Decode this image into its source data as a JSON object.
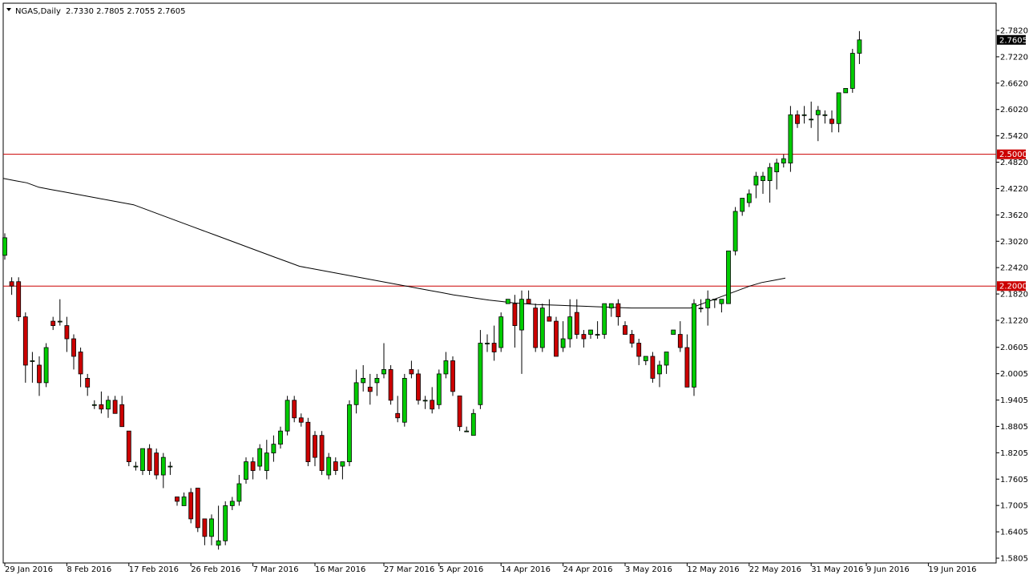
{
  "header": {
    "symbol_timeframe": "NGAS,Daily",
    "ohlc": "2.7330 2.7805 2.7055 2.7605",
    "dropdown_icon": "triangle-down-icon"
  },
  "colors": {
    "background": "#ffffff",
    "bull": "#00cc00",
    "bear": "#cc0000",
    "wick": "#000000",
    "level_line": "#cc0000",
    "moving_average": "#000000",
    "current_price_bg": "#000000",
    "current_price_fg": "#ffffff",
    "level_label_bg": "#cc0000",
    "level_label_fg": "#ffffff"
  },
  "chart_data": {
    "type": "candlestick",
    "title": "NGAS,Daily",
    "ylim": [
      1.5845,
      2.81
    ],
    "y_ticks": [
      "2.7820",
      "2.7220",
      "2.6620",
      "2.6020",
      "2.5420",
      "2.4820",
      "2.4220",
      "2.3620",
      "2.3020",
      "2.2420",
      "2.1820",
      "2.1220",
      "2.0605",
      "2.0005",
      "1.9405",
      "1.8805",
      "1.8205",
      "1.7605",
      "1.7005",
      "1.6405",
      "1.5805"
    ],
    "x_labels": [
      "29 Jan 2016",
      "8 Feb 2016",
      "17 Feb 2016",
      "26 Feb 2016",
      "7 Mar 2016",
      "16 Mar 2016",
      "27 Mar 2016",
      "5 Apr 2016",
      "14 Apr 2016",
      "24 Apr 2016",
      "3 May 2016",
      "12 May 2016",
      "22 May 2016",
      "31 May 2016",
      "9 Jun 2016",
      "19 Jun 2016"
    ],
    "x_label_bar_index": [
      0,
      9,
      18,
      27,
      36,
      45,
      55,
      63,
      72,
      81,
      90,
      99,
      108,
      117,
      125,
      134
    ],
    "horizontal_levels": [
      {
        "value": 2.5,
        "label": "2.5000"
      },
      {
        "value": 2.2,
        "label": "2.2000"
      }
    ],
    "current_price": {
      "value": 2.7605,
      "label": "2.7605"
    },
    "series": [
      {
        "kind": "ohlc",
        "columns": [
          "open",
          "high",
          "low",
          "close"
        ],
        "bars": [
          [
            2.27,
            2.32,
            2.26,
            2.31
          ],
          [
            2.21,
            2.22,
            2.18,
            2.2
          ],
          [
            2.21,
            2.22,
            2.12,
            2.13
          ],
          [
            2.13,
            2.14,
            1.98,
            2.02
          ],
          [
            2.03,
            2.05,
            1.98,
            2.03
          ],
          [
            2.02,
            2.04,
            1.95,
            1.98
          ],
          [
            1.98,
            2.07,
            1.97,
            2.06
          ],
          [
            2.12,
            2.13,
            2.1,
            2.11
          ],
          [
            2.12,
            2.17,
            2.11,
            2.12
          ],
          [
            2.11,
            2.13,
            2.05,
            2.08
          ],
          [
            2.08,
            2.09,
            2.01,
            2.04
          ],
          [
            2.05,
            2.06,
            1.97,
            2.0
          ],
          [
            1.99,
            2.0,
            1.95,
            1.97
          ],
          [
            1.93,
            1.94,
            1.92,
            1.93
          ],
          [
            1.93,
            1.96,
            1.91,
            1.92
          ],
          [
            1.92,
            1.95,
            1.9,
            1.94
          ],
          [
            1.94,
            1.95,
            1.91,
            1.91
          ],
          [
            1.93,
            1.95,
            1.88,
            1.88
          ],
          [
            1.87,
            1.87,
            1.79,
            1.8
          ],
          [
            1.79,
            1.8,
            1.78,
            1.79
          ],
          [
            1.78,
            1.82,
            1.77,
            1.83
          ],
          [
            1.83,
            1.84,
            1.77,
            1.78
          ],
          [
            1.82,
            1.83,
            1.76,
            1.77
          ],
          [
            1.77,
            1.82,
            1.74,
            1.81
          ],
          [
            1.79,
            1.8,
            1.77,
            1.79
          ],
          [
            1.72,
            1.72,
            1.7,
            1.71
          ],
          [
            1.7,
            1.73,
            1.7,
            1.72
          ],
          [
            1.73,
            1.74,
            1.66,
            1.67
          ],
          [
            1.74,
            1.74,
            1.64,
            1.65
          ],
          [
            1.67,
            1.67,
            1.61,
            1.63
          ],
          [
            1.63,
            1.68,
            1.61,
            1.67
          ],
          [
            1.61,
            1.7,
            1.6,
            1.62
          ],
          [
            1.62,
            1.71,
            1.61,
            1.7
          ],
          [
            1.7,
            1.72,
            1.69,
            1.71
          ],
          [
            1.71,
            1.77,
            1.7,
            1.75
          ],
          [
            1.76,
            1.81,
            1.75,
            1.8
          ],
          [
            1.8,
            1.81,
            1.76,
            1.78
          ],
          [
            1.79,
            1.84,
            1.78,
            1.83
          ],
          [
            1.78,
            1.85,
            1.76,
            1.82
          ],
          [
            1.82,
            1.86,
            1.8,
            1.84
          ],
          [
            1.84,
            1.88,
            1.83,
            1.87
          ],
          [
            1.87,
            1.95,
            1.86,
            1.94
          ],
          [
            1.94,
            1.95,
            1.89,
            1.9
          ],
          [
            1.9,
            1.91,
            1.88,
            1.89
          ],
          [
            1.89,
            1.9,
            1.79,
            1.8
          ],
          [
            1.86,
            1.87,
            1.79,
            1.81
          ],
          [
            1.86,
            1.87,
            1.77,
            1.78
          ],
          [
            1.77,
            1.82,
            1.76,
            1.81
          ],
          [
            1.8,
            1.81,
            1.77,
            1.78
          ],
          [
            1.79,
            1.8,
            1.76,
            1.8
          ],
          [
            1.8,
            1.94,
            1.79,
            1.93
          ],
          [
            1.93,
            2.01,
            1.91,
            1.98
          ],
          [
            1.98,
            2.02,
            1.96,
            1.99
          ],
          [
            1.97,
            2.0,
            1.93,
            1.96
          ],
          [
            1.98,
            2.0,
            1.95,
            1.99
          ],
          [
            2.0,
            2.07,
            1.99,
            2.01
          ],
          [
            2.01,
            2.02,
            1.93,
            1.94
          ],
          [
            1.91,
            1.95,
            1.89,
            1.9
          ],
          [
            1.89,
            2.0,
            1.88,
            1.99
          ],
          [
            2.01,
            2.03,
            1.99,
            2.0
          ],
          [
            2.0,
            2.01,
            1.93,
            1.94
          ],
          [
            1.94,
            1.95,
            1.92,
            1.94
          ],
          [
            1.94,
            1.97,
            1.91,
            1.92
          ],
          [
            1.93,
            2.01,
            1.92,
            2.0
          ],
          [
            2.0,
            2.05,
            1.99,
            2.03
          ],
          [
            2.03,
            2.04,
            1.95,
            1.96
          ],
          [
            1.95,
            1.95,
            1.87,
            1.88
          ],
          [
            1.87,
            1.88,
            1.87,
            1.87
          ],
          [
            1.86,
            1.92,
            1.86,
            1.91
          ],
          [
            1.93,
            2.1,
            1.92,
            2.07
          ],
          [
            2.07,
            2.09,
            2.05,
            2.07
          ],
          [
            2.07,
            2.11,
            2.03,
            2.05
          ],
          [
            2.06,
            2.14,
            2.05,
            2.13
          ],
          [
            2.16,
            2.17,
            2.16,
            2.17
          ],
          [
            2.16,
            2.18,
            2.06,
            2.11
          ],
          [
            2.1,
            2.19,
            2.0,
            2.17
          ],
          [
            2.17,
            2.19,
            2.16,
            2.16
          ],
          [
            2.15,
            2.16,
            2.05,
            2.06
          ],
          [
            2.06,
            2.16,
            2.05,
            2.15
          ],
          [
            2.13,
            2.17,
            2.12,
            2.12
          ],
          [
            2.12,
            2.13,
            2.04,
            2.04
          ],
          [
            2.06,
            2.12,
            2.05,
            2.08
          ],
          [
            2.08,
            2.17,
            2.06,
            2.13
          ],
          [
            2.14,
            2.17,
            2.08,
            2.09
          ],
          [
            2.09,
            2.1,
            2.06,
            2.08
          ],
          [
            2.09,
            2.1,
            2.08,
            2.1
          ],
          [
            2.09,
            2.12,
            2.08,
            2.09
          ],
          [
            2.09,
            2.16,
            2.08,
            2.16
          ],
          [
            2.15,
            2.16,
            2.13,
            2.16
          ],
          [
            2.16,
            2.17,
            2.11,
            2.13
          ],
          [
            2.11,
            2.12,
            2.09,
            2.09
          ],
          [
            2.09,
            2.1,
            2.06,
            2.07
          ],
          [
            2.07,
            2.08,
            2.02,
            2.04
          ],
          [
            2.03,
            2.04,
            2.02,
            2.04
          ],
          [
            2.04,
            2.05,
            1.98,
            1.99
          ],
          [
            2.0,
            2.03,
            1.97,
            2.02
          ],
          [
            2.02,
            2.05,
            2.0,
            2.05
          ],
          [
            2.09,
            2.1,
            2.09,
            2.1
          ],
          [
            2.09,
            2.12,
            2.05,
            2.06
          ],
          [
            2.06,
            2.09,
            1.97,
            1.97
          ],
          [
            1.97,
            2.17,
            1.95,
            2.16
          ],
          [
            2.15,
            2.17,
            2.14,
            2.15
          ],
          [
            2.15,
            2.19,
            2.11,
            2.17
          ],
          [
            2.17,
            2.17,
            2.15,
            2.17
          ],
          [
            2.16,
            2.17,
            2.14,
            2.17
          ],
          [
            2.16,
            2.28,
            2.16,
            2.28
          ],
          [
            2.28,
            2.38,
            2.27,
            2.37
          ],
          [
            2.37,
            2.4,
            2.36,
            2.4
          ],
          [
            2.39,
            2.42,
            2.38,
            2.41
          ],
          [
            2.43,
            2.46,
            2.4,
            2.45
          ],
          [
            2.44,
            2.46,
            2.41,
            2.45
          ],
          [
            2.44,
            2.48,
            2.39,
            2.47
          ],
          [
            2.46,
            2.49,
            2.42,
            2.48
          ],
          [
            2.48,
            2.5,
            2.47,
            2.49
          ],
          [
            2.48,
            2.61,
            2.46,
            2.59
          ],
          [
            2.59,
            2.6,
            2.56,
            2.57
          ],
          [
            2.59,
            2.61,
            2.57,
            2.59
          ],
          [
            2.58,
            2.62,
            2.56,
            2.58
          ],
          [
            2.59,
            2.61,
            2.53,
            2.6
          ],
          [
            2.59,
            2.6,
            2.57,
            2.59
          ],
          [
            2.58,
            2.6,
            2.55,
            2.57
          ],
          [
            2.57,
            2.64,
            2.55,
            2.64
          ],
          [
            2.64,
            2.65,
            2.64,
            2.65
          ],
          [
            2.65,
            2.74,
            2.64,
            2.73
          ],
          [
            2.73,
            2.7805,
            2.7055,
            2.7605
          ]
        ]
      },
      {
        "kind": "moving_average",
        "values": [
          2.445,
          2.44,
          2.435,
          2.425,
          2.42,
          2.415,
          2.41,
          2.405,
          2.4,
          2.395,
          2.39,
          2.385,
          2.375,
          2.365,
          2.355,
          2.345,
          2.335,
          2.325,
          2.315,
          2.305,
          2.295,
          2.285,
          2.275,
          2.265,
          2.255,
          2.245,
          2.24,
          2.235,
          2.23,
          2.225,
          2.22,
          2.215,
          2.21,
          2.205,
          2.2,
          2.195,
          2.19,
          2.185,
          2.18,
          2.176,
          2.172,
          2.168,
          2.165,
          2.162,
          2.16,
          2.158,
          2.157,
          2.156,
          2.155,
          2.154,
          2.153,
          2.152,
          2.151,
          2.15,
          2.15,
          2.15,
          2.15,
          2.15,
          2.15,
          2.16,
          2.17,
          2.18,
          2.19,
          2.2,
          2.208,
          2.213,
          2.218
        ]
      }
    ]
  }
}
